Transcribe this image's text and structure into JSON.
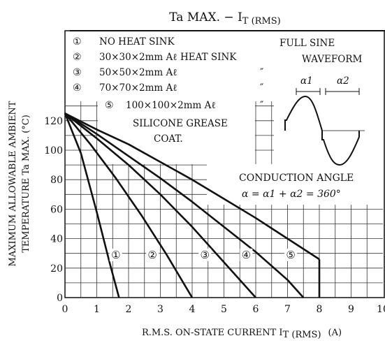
{
  "chart_data": {
    "type": "line",
    "title": {
      "main": "Ta MAX. − I",
      "sub": "T (RMS)"
    },
    "xlabel": {
      "main": "R.M.S. ON-STATE CURRENT  I",
      "sub": "T (RMS)",
      "unit": "(A)"
    },
    "ylabel": {
      "line1": "MAXIMUM ALLOWABLE AMBIENT",
      "line2": "TEMPERATURE   Ta MAX.   (°C)"
    },
    "xlim": [
      0,
      10
    ],
    "ylim": [
      0,
      140
    ],
    "xticks": [
      "0",
      "1",
      "2",
      "3",
      "4",
      "5",
      "6",
      "7",
      "8",
      "9",
      "10"
    ],
    "yticks": [
      "0",
      "20",
      "40",
      "60",
      "80",
      "100",
      "120"
    ],
    "grid": true,
    "legend": {
      "items": [
        {
          "mark": "①",
          "text": "NO HEAT SINK"
        },
        {
          "mark": "②",
          "text": "30×30×2mm Aℓ HEAT SINK"
        },
        {
          "mark": "③",
          "text": "50×50×2mm Aℓ"
        },
        {
          "mark": "④",
          "text": "70×70×2mm Aℓ"
        },
        {
          "mark": "⑤",
          "text": "100×100×2mm Aℓ"
        }
      ],
      "ditto": "″",
      "grease_line1": "SILICONE GREASE",
      "grease_line2": "COAT."
    },
    "annotations": {
      "waveform_line1": "FULL SINE",
      "waveform_line2": "WAVEFORM",
      "alpha1": "α1",
      "alpha2": "α2",
      "conduction_title": "CONDUCTION ANGLE",
      "conduction_formula": "α = α1 + α2 = 360°"
    },
    "series": [
      {
        "label": "①",
        "label_at": [
          1.6,
          29
        ],
        "x": [
          0,
          0.5,
          1.0,
          1.4,
          1.7
        ],
        "y": [
          125,
          98,
          58,
          24,
          0
        ]
      },
      {
        "label": "②",
        "label_at": [
          2.75,
          29
        ],
        "x": [
          0,
          0.8,
          1.6,
          2.4,
          3.2,
          4.0
        ],
        "y": [
          125,
          104,
          81,
          56,
          29,
          0
        ]
      },
      {
        "label": "③",
        "label_at": [
          4.4,
          29
        ],
        "x": [
          0,
          1.0,
          2.0,
          3.0,
          4.0,
          5.0,
          6.0
        ],
        "y": [
          125,
          108,
          90,
          70,
          48,
          24,
          0
        ]
      },
      {
        "label": "④",
        "label_at": [
          5.7,
          29
        ],
        "x": [
          0,
          1.0,
          2.0,
          3.0,
          4.0,
          5.0,
          6.0,
          7.0,
          7.5
        ],
        "y": [
          125,
          111,
          96,
          81,
          65,
          48,
          31,
          12,
          0
        ]
      },
      {
        "label": "⑤",
        "label_at": [
          7.1,
          29
        ],
        "x": [
          0,
          1.0,
          2.0,
          3.0,
          4.0,
          5.0,
          6.0,
          7.0,
          8.0
        ],
        "y": [
          125,
          114,
          104,
          92,
          80,
          67,
          54,
          40,
          26
        ]
      }
    ]
  }
}
